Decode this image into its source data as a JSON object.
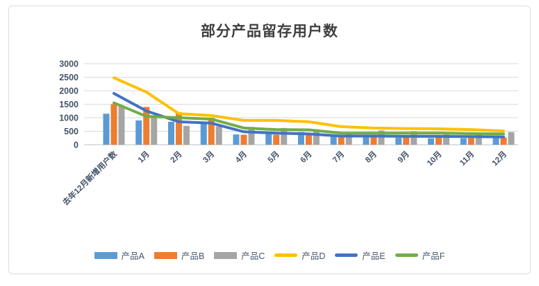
{
  "title": "部分产品留存用户数",
  "chart_data": {
    "type": "bar+line",
    "title": "部分产品留存用户数",
    "xlabel": "",
    "ylabel": "",
    "ylim": [
      0,
      3000
    ],
    "yticks": [
      0,
      500,
      1000,
      1500,
      2000,
      2500,
      3000
    ],
    "grid": true,
    "legend_position": "bottom",
    "categories": [
      "去年12月新增用户数",
      "1月",
      "2月",
      "3月",
      "4月",
      "5月",
      "6月",
      "7月",
      "8月",
      "9月",
      "10月",
      "11月",
      "12月"
    ],
    "series": [
      {
        "name": "产品A",
        "type": "bar",
        "color": "#5B9BD5",
        "values": [
          1150,
          900,
          850,
          800,
          380,
          470,
          470,
          300,
          270,
          260,
          240,
          240,
          240
        ]
      },
      {
        "name": "产品B",
        "type": "bar",
        "color": "#ED7D31",
        "values": [
          1500,
          1400,
          1200,
          1000,
          370,
          370,
          370,
          360,
          340,
          320,
          300,
          300,
          270
        ]
      },
      {
        "name": "产品C",
        "type": "bar",
        "color": "#A5A5A5",
        "values": [
          1450,
          1000,
          700,
          680,
          660,
          620,
          570,
          450,
          530,
          500,
          380,
          400,
          470
        ]
      },
      {
        "name": "产品D",
        "type": "line",
        "color": "#FFC000",
        "values": [
          2480,
          1950,
          1150,
          1080,
          900,
          900,
          850,
          670,
          620,
          600,
          590,
          560,
          510
        ]
      },
      {
        "name": "产品E",
        "type": "line",
        "color": "#4472C4",
        "values": [
          1900,
          1250,
          850,
          800,
          480,
          430,
          400,
          320,
          320,
          310,
          310,
          300,
          290
        ]
      },
      {
        "name": "产品F",
        "type": "line",
        "color": "#70AD47",
        "values": [
          1550,
          1050,
          1000,
          950,
          620,
          560,
          550,
          430,
          430,
          430,
          430,
          410,
          400
        ]
      }
    ]
  }
}
